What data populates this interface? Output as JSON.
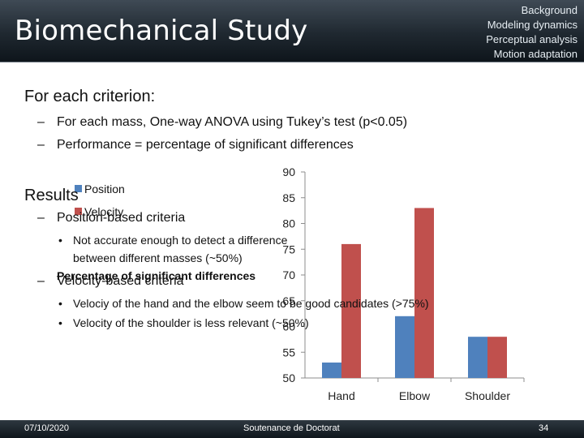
{
  "header": {
    "title": "Biomechanical Study",
    "nav": [
      "Background",
      "Modeling dynamics",
      "Perceptual analysis",
      "Motion adaptation"
    ]
  },
  "body": {
    "intro": "For each criterion:",
    "sub1": "For each mass, One-way ANOVA using Tukey’s test (p<0.05)",
    "sub2": "Performance = percentage of significant differences",
    "results": "Results",
    "position_head": "Position-based criteria",
    "position_b1": "Not accurate enough to detect a difference",
    "position_b1_cont": "between different masses (~50%)",
    "velocity_head": "Velocity-based criteria",
    "velocity_b1": "Velociy of the hand and the elbow seem to be good candidates (>75%)",
    "velocity_b2": "Velocity of the shoulder is less relevant (~50%)",
    "dash": "–",
    "bullet": "•"
  },
  "chart_data": {
    "type": "bar",
    "categories": [
      "Hand",
      "Elbow",
      "Shoulder"
    ],
    "series": [
      {
        "name": "Position",
        "values": [
          53,
          62,
          58
        ],
        "color": "#4f81bd"
      },
      {
        "name": "Velocity",
        "values": [
          76,
          83,
          58
        ],
        "color": "#c0504d"
      }
    ],
    "ylabel": "Percentage of significant differences",
    "ylim": [
      50,
      90
    ],
    "yticks": [
      50,
      55,
      60,
      65,
      70,
      75,
      80,
      85,
      90
    ],
    "grid": false,
    "legend": "top-left"
  },
  "footer": {
    "date": "07/10/2020",
    "event": "Soutenance de Doctorat",
    "page": "34"
  }
}
